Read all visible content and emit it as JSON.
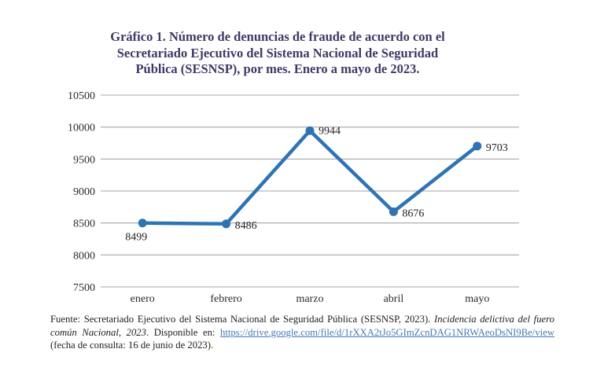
{
  "title": {
    "full": "Gráfico 1. Número de denuncias de fraude de acuerdo con el Secretariado Ejecutivo del Sistema Nacional de Seguridad Pública (SESNSP), por mes. Enero a mayo de 2023.",
    "lines": [
      "Gráfico 1. Número de denuncias de fraude de acuerdo con el",
      "Secretariado Ejecutivo del Sistema Nacional de Seguridad",
      "Pública (SESNSP), por mes. Enero a mayo de 2023."
    ],
    "color": "#3D3A65"
  },
  "chart_data": {
    "type": "line",
    "title": "Gráfico 1. Número de denuncias de fraude de acuerdo con el Secretariado Ejecutivo del Sistema Nacional de Seguridad Pública (SESNSP), por mes. Enero a mayo de 2023.",
    "categories": [
      "enero",
      "febrero",
      "marzo",
      "abril",
      "mayo"
    ],
    "values": [
      8499,
      8486,
      9944,
      8676,
      9703
    ],
    "data_labels": [
      "8499",
      "8486",
      "9944",
      "8676",
      "9703"
    ],
    "xlabel": "",
    "ylabel": "",
    "ylim": [
      7500,
      10500
    ],
    "yticks": [
      7500,
      8000,
      8500,
      9000,
      9500,
      10000,
      10500
    ],
    "grid": "horizontal",
    "legend": "none",
    "line_color": "#2E74B5",
    "marker": "circle",
    "gridline_color": "#A6A6A6",
    "tick_label_color": "#2b2b2b",
    "data_label_color": "#202020"
  },
  "footer": {
    "source_prefix": "Fuente: Secretariado Ejecutivo del Sistema Nacional de Seguridad Pública (SESNSP, 2023). ",
    "source_italic": "Incidencia delictiva del fuero común Nacional, 2023",
    "source_mid": ". Disponible en: ",
    "link_text": "https://drive.google.com/file/d/1rXXA2tJo5GImZcnDAG1NRWAeoDsNI9Be/view",
    "source_suffix": " (fecha de consulta: 16 de junio de 2023).",
    "link_color": "#4678B8"
  }
}
